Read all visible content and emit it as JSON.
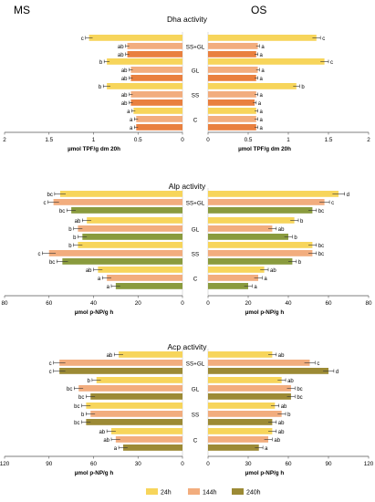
{
  "headers": {
    "left": "MS",
    "right": "OS"
  },
  "colors": {
    "24h": "#f7d55b",
    "144h": "#f2ad7e",
    "240h": "#e9803f",
    "240h_alp": "#8a9b3e",
    "240h_acp": "#9c8a35"
  },
  "legend": [
    {
      "label": "24h",
      "color_key": "24h"
    },
    {
      "label": "144h",
      "color_key": "144h"
    },
    {
      "label": "240h",
      "color_key": "240h_acp"
    }
  ],
  "chart_data": [
    {
      "type": "bar",
      "title": "Dha activity",
      "groups": [
        "SS+GL",
        "GL",
        "SS",
        "C"
      ],
      "series": [
        {
          "name": "24h",
          "color_key": "24h"
        },
        {
          "name": "144h",
          "color_key": "144h"
        },
        {
          "name": "240h",
          "color_key": "240h"
        }
      ],
      "xlim": [
        0,
        2
      ],
      "ticks": [
        "2",
        "1.5",
        "1",
        "0.5",
        "0"
      ],
      "ticks_right": [
        "0",
        "0.5",
        "1",
        "1.5",
        "2"
      ],
      "xlabel_left": "µmol TPF/g dm 20h",
      "xlabel_right": "µmol TPF/g dm 20h",
      "MS": {
        "values": [
          [
            1.05,
            0.62,
            0.62
          ],
          [
            0.85,
            0.58,
            0.58
          ],
          [
            0.85,
            0.58,
            0.58
          ],
          [
            0.55,
            0.52,
            0.52
          ]
        ],
        "errors": [
          [
            0.04,
            0.02,
            0.02
          ],
          [
            0.03,
            0.02,
            0.02
          ],
          [
            0.04,
            0.02,
            0.02
          ],
          [
            0.02,
            0.02,
            0.02
          ]
        ],
        "labels": [
          [
            "c",
            "ab",
            "ab"
          ],
          [
            "b",
            "ab",
            "ab"
          ],
          [
            "b",
            "ab",
            "ab"
          ],
          [
            "a",
            "a",
            "a"
          ]
        ]
      },
      "OS": {
        "values": [
          [
            1.35,
            0.62,
            0.6
          ],
          [
            1.45,
            0.62,
            0.6
          ],
          [
            1.1,
            0.6,
            0.58
          ],
          [
            0.6,
            0.6,
            0.6
          ]
        ],
        "errors": [
          [
            0.05,
            0.02,
            0.02
          ],
          [
            0.05,
            0.02,
            0.02
          ],
          [
            0.04,
            0.02,
            0.02
          ],
          [
            0.02,
            0.02,
            0.02
          ]
        ],
        "labels": [
          [
            "c",
            "a",
            "a"
          ],
          [
            "c",
            "a",
            "a"
          ],
          [
            "b",
            "a",
            "a"
          ],
          [
            "a",
            "a",
            "a"
          ]
        ]
      }
    },
    {
      "type": "bar",
      "title": "Alp activity",
      "groups": [
        "SS+GL",
        "GL",
        "SS",
        "C"
      ],
      "series": [
        {
          "name": "24h",
          "color_key": "24h"
        },
        {
          "name": "144h",
          "color_key": "144h"
        },
        {
          "name": "240h",
          "color_key": "240h_alp"
        }
      ],
      "xlim": [
        0,
        80
      ],
      "ticks": [
        "80",
        "60",
        "40",
        "20",
        "0"
      ],
      "ticks_right": [
        "0",
        "20",
        "40",
        "60",
        "80"
      ],
      "xlabel_left": "µmol p-NP/g h",
      "xlabel_right": "µmol p-NP/g h",
      "MS": {
        "values": [
          [
            55,
            58,
            50
          ],
          [
            43,
            47,
            45
          ],
          [
            47,
            60,
            54
          ],
          [
            38,
            34,
            30
          ]
        ],
        "errors": [
          [
            2.5,
            2.5,
            2
          ],
          [
            2,
            2,
            2
          ],
          [
            2,
            3,
            2.5
          ],
          [
            2,
            2,
            2
          ]
        ],
        "labels": [
          [
            "bc",
            "c",
            "bc"
          ],
          [
            "ab",
            "b",
            "b"
          ],
          [
            "b",
            "c",
            "bc"
          ],
          [
            "ab",
            "a",
            "a"
          ]
        ]
      },
      "OS": {
        "values": [
          [
            65,
            58,
            52
          ],
          [
            43,
            32,
            40
          ],
          [
            52,
            52,
            42
          ],
          [
            28,
            25,
            20
          ]
        ],
        "errors": [
          [
            3,
            2.5,
            2
          ],
          [
            2,
            2,
            2
          ],
          [
            2,
            2,
            2
          ],
          [
            2,
            2,
            2
          ]
        ],
        "labels": [
          [
            "d",
            "c",
            "bc"
          ],
          [
            "b",
            "ab",
            "b"
          ],
          [
            "bc",
            "bc",
            "b"
          ],
          [
            "ab",
            "a",
            "a"
          ]
        ]
      }
    },
    {
      "type": "bar",
      "title": "Acp activity",
      "groups": [
        "SS+GL",
        "GL",
        "SS",
        "C"
      ],
      "series": [
        {
          "name": "24h",
          "color_key": "24h"
        },
        {
          "name": "144h",
          "color_key": "144h"
        },
        {
          "name": "240h",
          "color_key": "240h_acp"
        }
      ],
      "xlim": [
        0,
        120
      ],
      "ticks": [
        "120",
        "90",
        "60",
        "30",
        "0"
      ],
      "ticks_right": [
        "0",
        "30",
        "60",
        "90",
        "120"
      ],
      "xlabel_left": "µmol p-NP/g h",
      "xlabel_right": "µmol p-NP/g h",
      "MS": {
        "values": [
          [
            43,
            83,
            83
          ],
          [
            58,
            70,
            62
          ],
          [
            65,
            62,
            65
          ],
          [
            48,
            45,
            40
          ]
        ],
        "errors": [
          [
            3,
            4,
            4
          ],
          [
            3,
            3,
            3
          ],
          [
            3,
            3,
            3
          ],
          [
            3,
            3,
            3
          ]
        ],
        "labels": [
          [
            "ab",
            "c",
            "c"
          ],
          [
            "b",
            "bc",
            "bc"
          ],
          [
            "bc",
            "b",
            "bc"
          ],
          [
            "ab",
            "ab",
            "a"
          ]
        ]
      },
      "OS": {
        "values": [
          [
            48,
            76,
            90
          ],
          [
            55,
            62,
            62
          ],
          [
            50,
            55,
            48
          ],
          [
            48,
            45,
            38
          ]
        ],
        "errors": [
          [
            3,
            4,
            4
          ],
          [
            3,
            3,
            3
          ],
          [
            3,
            3,
            3
          ],
          [
            3,
            3,
            3
          ]
        ],
        "labels": [
          [
            "ab",
            "c",
            "d"
          ],
          [
            "ab",
            "bc",
            "bc"
          ],
          [
            "ab",
            "b",
            "ab"
          ],
          [
            "ab",
            "ab",
            "a"
          ]
        ]
      }
    }
  ]
}
